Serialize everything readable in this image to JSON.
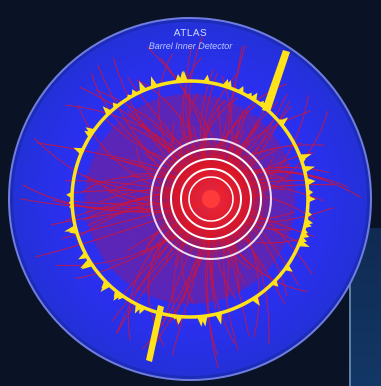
{
  "image": {
    "title": "ATLAS",
    "subtitle": "Barrel Inner Detector",
    "colors": {
      "page_background": "#0a1326",
      "disc": "#2a2cf0",
      "tracks": "#e0122a",
      "calorimeter": "#ffe21a",
      "layers": "#ffffff"
    }
  }
}
